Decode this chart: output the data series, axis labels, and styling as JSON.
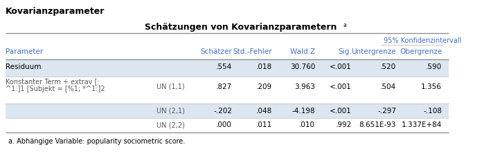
{
  "title_main": "Kovarianzparameter",
  "title_table": "Schätzungen von Kovarianzparametern",
  "title_superscript": "a",
  "footnote": "a. Abhängige Variable: popularity sociometric score.",
  "header_konfidenz": "95% Konfidenzintervall",
  "col_headers": [
    "Parameter",
    "",
    "Schätzer",
    "Std.-Fehler",
    "Wald Z",
    "Sig.",
    "Untergrenze",
    "Obergrenze"
  ],
  "rows": [
    {
      "param": "Residuum",
      "param2": "",
      "sub": "",
      "schaetzer": ".554",
      "std_fehler": ".018",
      "wald_z": "30.760",
      "sig": "<.001",
      "untergrenze": ".520",
      "obergrenze": ".590",
      "shaded": true
    },
    {
      "param": "Konstanter Term + extrav [:",
      "param2": "^1:]1 [Subjekt = [%1; *^1:]2",
      "sub": "UN (1,1)",
      "schaetzer": ".827",
      "std_fehler": ".209",
      "wald_z": "3.963",
      "sig": "<.001",
      "untergrenze": ".504",
      "obergrenze": "1.356",
      "shaded": false
    },
    {
      "param": "",
      "param2": "",
      "sub": "UN (2,1)",
      "schaetzer": "-.202",
      "std_fehler": ".048",
      "wald_z": "-4.198",
      "sig": "<.001",
      "untergrenze": "-.297",
      "obergrenze": "-.108",
      "shaded": false
    },
    {
      "param": "",
      "param2": "",
      "sub": "UN (2,2)",
      "schaetzer": ".000",
      "std_fehler": ".011",
      "wald_z": ".010",
      "sig": ".992",
      "untergrenze": "8.651E-93",
      "obergrenze": "1.337E+84",
      "shaded": false
    }
  ],
  "bg_color": "#ffffff",
  "shaded_color": "#dce6f1",
  "header_color": "#4472c4",
  "text_color": "#000000",
  "subparam_color": "#595959",
  "line_color_heavy": "#888888",
  "line_color_light": "#bbbbbb",
  "title_main_bold": true,
  "title_main_size": 9,
  "title_table_size": 9,
  "header_size": 7.5,
  "data_size": 7.5,
  "footnote_size": 7
}
